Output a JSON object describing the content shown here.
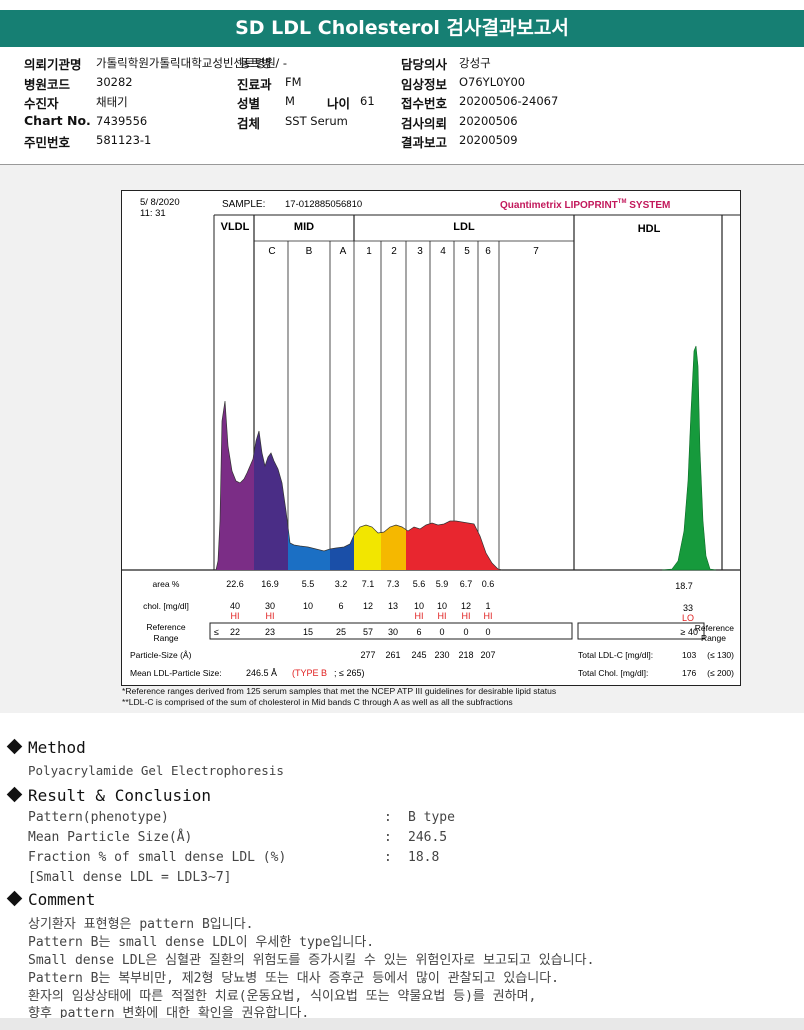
{
  "title": "SD LDL Cholesterol 검사결과보고서",
  "patient": {
    "left": [
      {
        "key": "의뢰기관명",
        "value": "가톨릭학원가톨릭대학교성빈센트병원"
      },
      {
        "key": "병원코드",
        "value": "30282"
      },
      {
        "key": "수진자",
        "value": "채태기"
      },
      {
        "key": "Chart No.",
        "value": "7439556"
      },
      {
        "key": "주민번호",
        "value": "581123-1"
      }
    ],
    "middle": [
      {
        "key": "진료과",
        "value": "FM"
      },
      {
        "key": "성별",
        "value": "M"
      },
      {
        "key": "검체",
        "value": "SST Serum"
      }
    ],
    "age": {
      "key": "나이",
      "value": "61"
    },
    "ward": "동트병 / -",
    "right": [
      {
        "key": "담당의사",
        "value": "강성구"
      },
      {
        "key": "임상정보",
        "value": "O76YL0Y00"
      },
      {
        "key": "접수번호",
        "value": "20200506-24067"
      },
      {
        "key": "검사의뢰",
        "value": "20200506"
      },
      {
        "key": "결과보고",
        "value": "20200509"
      }
    ]
  },
  "report": {
    "date": "5/ 8/2020",
    "time": "11: 31",
    "sample_label": "SAMPLE:",
    "sample_id": "17-012885056810",
    "brand": "Quantimetrix LIPOPRINT",
    "brand_tm": "TM",
    "brand_suffix": " SYSTEM",
    "groups": [
      "VLDL",
      "MID",
      "LDL",
      "HDL"
    ],
    "bands": [
      "C",
      "B",
      "A",
      "1",
      "2",
      "3",
      "4",
      "5",
      "6",
      "7"
    ],
    "row_labels": {
      "area": "area %",
      "chol": "chol. [mg/dl]",
      "ref": "Reference",
      "ref2": "Range",
      "size": "Particle-Size (Å)",
      "mean": "Mean LDL-Particle Size:"
    },
    "area": [
      "22.6",
      "16.9",
      "5.5",
      "3.2",
      "7.1",
      "7.3",
      "5.6",
      "5.9",
      "6.7",
      "0.6"
    ],
    "area_hdl": "18.7",
    "chol": [
      "40",
      "30",
      "10",
      "6",
      "12",
      "13",
      "10",
      "10",
      "12",
      "1"
    ],
    "chol_flags": [
      "HI",
      "HI",
      "",
      "",
      "",
      "",
      "HI",
      "HI",
      "HI",
      "HI"
    ],
    "chol_hdl": "33",
    "chol_hdl_flag": "LO",
    "ref_prefix": "≤",
    "ref_values": [
      "22",
      "23",
      "15",
      "25",
      "57",
      "30",
      "6",
      "0",
      "0",
      "0"
    ],
    "ref_hdl": "≥ 40",
    "ref_right1": "Reference",
    "ref_right2": "Range",
    "sizes": [
      "277",
      "261",
      "245",
      "230",
      "218",
      "207"
    ],
    "mean_size": "246.5 Å",
    "mean_type": "(TYPE B",
    "mean_limit": "; ≤ 265)",
    "total_ldl_label": "Total LDL-C [mg/dl]:",
    "total_ldl_value": "103",
    "total_ldl_limit": "(≤ 130)",
    "total_chol_label": "Total Chol. [mg/dl]:",
    "total_chol_value": "176",
    "total_chol_limit": "(≤ 200)",
    "footnote1": "*Reference ranges derived from 125 serum samples that met the NCEP ATP III guidelines for desirable lipid status",
    "footnote2": "**LDL-C is comprised of the sum of cholesterol in Mid bands C through A as well as all the subfractions"
  },
  "colors": {
    "title_bg": "#167f73",
    "vldl": "#7b2d86",
    "midC": "#4a2d86",
    "midB": "#1b6fc4",
    "midA": "#1a4fa8",
    "ldl1": "#f2e600",
    "ldl2": "#f5b800",
    "ldl3": "#e8262f",
    "hdl": "#169a3c",
    "flag": "#e02020",
    "brand": "#c2185b"
  },
  "method": {
    "heading": "Method",
    "text": "Polyacrylamide Gel Electrophoresis"
  },
  "result": {
    "heading": "Result & Conclusion",
    "rows": [
      {
        "label": "Pattern(phenotype)",
        "value": "B type"
      },
      {
        "label": "Mean Particle Size(Å)",
        "value": "246.5"
      },
      {
        "label": "Fraction % of small dense LDL (%)",
        "value": "18.8"
      }
    ],
    "note": "[Small dense LDL = LDL3~7]"
  },
  "comment": {
    "heading": "Comment",
    "lines": [
      "상기환자 표현형은 pattern B입니다.",
      "Pattern B는 small dense LDL이 우세한 type입니다.",
      "Small dense LDL은 심혈관 질환의 위험도를 증가시킬 수 있는 위험인자로 보고되고 있습니다.",
      "Pattern B는 복부비만, 제2형 당뇨병 또는 대사 증후군 등에서 많이 관찰되고 있습니다.",
      "환자의 임상상태에 따른 적절한 치료(운동요법, 식이요법 또는 약물요법 등)를 권하며,",
      "향후 pattern 변화에 대한 확인을 권유합니다."
    ]
  }
}
